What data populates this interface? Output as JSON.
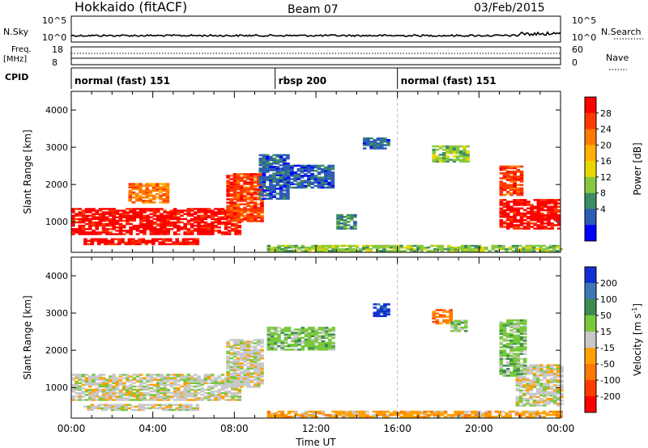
{
  "header": {
    "station": "Hokkaido (fitACF)",
    "beam": "Beam 07",
    "date": "03/Feb/2015"
  },
  "top_panels": {
    "nsky_label": "N.Sky",
    "nsky_ticks": [
      "10^5",
      "10^0"
    ],
    "nsearch_label": "N.Search",
    "nsearch_ticks": [
      "10^5",
      "10^0"
    ],
    "freq_label": "Freq.",
    "freq_unit": "[MHz]",
    "freq_ticks": [
      "18",
      "8"
    ],
    "nave_label": "Nave",
    "nave_ticks": [
      "60",
      "0"
    ],
    "cpid_label": "CPID",
    "cpid_segments": [
      {
        "label": "normal (fast) 151",
        "start_h": 0,
        "end_h": 10
      },
      {
        "label": "rbsp 200",
        "start_h": 10,
        "end_h": 16
      },
      {
        "label": "normal (fast) 151",
        "start_h": 16,
        "end_h": 24
      }
    ]
  },
  "chart_data": [
    {
      "type": "heatmap",
      "quantity": "Power",
      "ylabel": "Slant Range [km]",
      "xlim_hours": [
        0,
        24
      ],
      "ylim": [
        180,
        4500
      ],
      "yticks": [
        "1000",
        "2000",
        "3000",
        "4000"
      ],
      "colorbar": {
        "label": "Power [dB]",
        "ticks": [
          "28",
          "24",
          "20",
          "16",
          "12",
          "8",
          "4"
        ],
        "colors": [
          "#ff0000",
          "#ff3a00",
          "#ff7a00",
          "#ffb000",
          "#e8d800",
          "#88c840",
          "#3c8c64",
          "#2c5cb4",
          "#0000ff"
        ]
      },
      "regions": [
        {
          "t0": 0.0,
          "t1": 8.3,
          "r0": 650,
          "r1": 1350,
          "level": 0
        },
        {
          "t0": 0.6,
          "t1": 6.2,
          "r0": 380,
          "r1": 560,
          "level": 0
        },
        {
          "t0": 2.8,
          "t1": 4.8,
          "r0": 1500,
          "r1": 2000,
          "level": 2
        },
        {
          "t0": 7.6,
          "t1": 9.4,
          "r0": 1000,
          "r1": 2300,
          "level": 1
        },
        {
          "t0": 9.2,
          "t1": 10.6,
          "r0": 1600,
          "r1": 2800,
          "level": 7
        },
        {
          "t0": 10.4,
          "t1": 12.8,
          "r0": 1900,
          "r1": 2500,
          "level": 7
        },
        {
          "t0": 13.0,
          "t1": 13.9,
          "r0": 800,
          "r1": 1200,
          "level": 6
        },
        {
          "t0": 14.3,
          "t1": 15.5,
          "r0": 2950,
          "r1": 3250,
          "level": 7
        },
        {
          "t0": 17.7,
          "t1": 19.4,
          "r0": 2600,
          "r1": 3050,
          "level": 5
        },
        {
          "t0": 21.0,
          "t1": 24.0,
          "r0": 800,
          "r1": 1600,
          "level": 0
        },
        {
          "t0": 21.0,
          "t1": 22.1,
          "r0": 1700,
          "r1": 2500,
          "level": 1
        },
        {
          "t0": 9.6,
          "t1": 24.0,
          "r0": 200,
          "r1": 380,
          "level": 5
        }
      ]
    },
    {
      "type": "heatmap",
      "quantity": "Velocity",
      "ylabel": "Slant Range [km]",
      "xlabel": "Time UT",
      "xlim_hours": [
        0,
        24
      ],
      "ylim": [
        180,
        4500
      ],
      "xticks": [
        "00:00",
        "04:00",
        "08:00",
        "12:00",
        "16:00",
        "20:00",
        "00:00"
      ],
      "yticks": [
        "1000",
        "2000",
        "3000",
        "4000"
      ],
      "colorbar": {
        "label": "Velocity [m s^-1]",
        "ticks": [
          "200",
          "100",
          "50",
          "15",
          "-15",
          "-50",
          "-100",
          "-200"
        ],
        "colors": [
          "#1030d0",
          "#3c78b4",
          "#3c8c50",
          "#78c83c",
          "#c8c8c8",
          "#ffa000",
          "#ff7800",
          "#ff3c00",
          "#ff0000"
        ]
      },
      "regions": [
        {
          "t0": 0.0,
          "t1": 8.3,
          "r0": 650,
          "r1": 1350,
          "level": 4
        },
        {
          "t0": 0.6,
          "t1": 6.2,
          "r0": 380,
          "r1": 560,
          "level": 4
        },
        {
          "t0": 7.6,
          "t1": 9.4,
          "r0": 1000,
          "r1": 2300,
          "level": 4
        },
        {
          "t0": 9.6,
          "t1": 12.8,
          "r0": 2000,
          "r1": 2600,
          "level": 3
        },
        {
          "t0": 14.8,
          "t1": 15.5,
          "r0": 2900,
          "r1": 3250,
          "level": 0
        },
        {
          "t0": 17.7,
          "t1": 18.6,
          "r0": 2700,
          "r1": 3100,
          "level": 6
        },
        {
          "t0": 18.6,
          "t1": 19.4,
          "r0": 2500,
          "r1": 2800,
          "level": 3
        },
        {
          "t0": 21.8,
          "t1": 24.0,
          "r0": 500,
          "r1": 1600,
          "level": 4
        },
        {
          "t0": 21.0,
          "t1": 22.2,
          "r0": 1300,
          "r1": 2800,
          "level": 3
        },
        {
          "t0": 9.6,
          "t1": 24.0,
          "r0": 200,
          "r1": 380,
          "level": 5
        }
      ]
    }
  ]
}
